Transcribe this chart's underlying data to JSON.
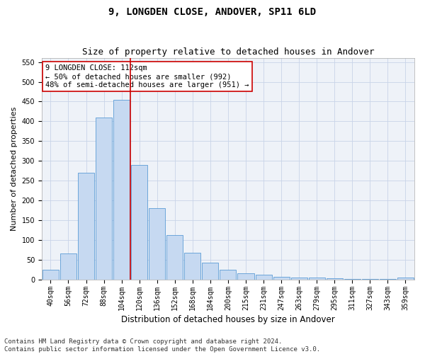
{
  "title1": "9, LONGDEN CLOSE, ANDOVER, SP11 6LD",
  "title2": "Size of property relative to detached houses in Andover",
  "xlabel": "Distribution of detached houses by size in Andover",
  "ylabel": "Number of detached properties",
  "categories": [
    "40sqm",
    "56sqm",
    "72sqm",
    "88sqm",
    "104sqm",
    "120sqm",
    "136sqm",
    "152sqm",
    "168sqm",
    "184sqm",
    "200sqm",
    "215sqm",
    "231sqm",
    "247sqm",
    "263sqm",
    "279sqm",
    "295sqm",
    "311sqm",
    "327sqm",
    "343sqm",
    "359sqm"
  ],
  "values": [
    25,
    65,
    270,
    410,
    455,
    290,
    180,
    113,
    67,
    42,
    25,
    15,
    12,
    7,
    5,
    4,
    3,
    2,
    2,
    2,
    5
  ],
  "bar_color": "#c6d9f1",
  "bar_edge_color": "#5b9bd5",
  "grid_color": "#c8d4e8",
  "bg_color": "#eef2f8",
  "fig_color": "#ffffff",
  "vline_x": 4.5,
  "vline_color": "#cc0000",
  "annotation_text": "9 LONGDEN CLOSE: 112sqm\n← 50% of detached houses are smaller (992)\n48% of semi-detached houses are larger (951) →",
  "annotation_box_color": "#ffffff",
  "annotation_box_edge": "#cc0000",
  "ylim": [
    0,
    560
  ],
  "yticks": [
    0,
    50,
    100,
    150,
    200,
    250,
    300,
    350,
    400,
    450,
    500,
    550
  ],
  "footnote": "Contains HM Land Registry data © Crown copyright and database right 2024.\nContains public sector information licensed under the Open Government Licence v3.0.",
  "title1_fontsize": 10,
  "title2_fontsize": 9,
  "xlabel_fontsize": 8.5,
  "ylabel_fontsize": 8,
  "tick_fontsize": 7,
  "annot_fontsize": 7.5,
  "footnote_fontsize": 6.5
}
